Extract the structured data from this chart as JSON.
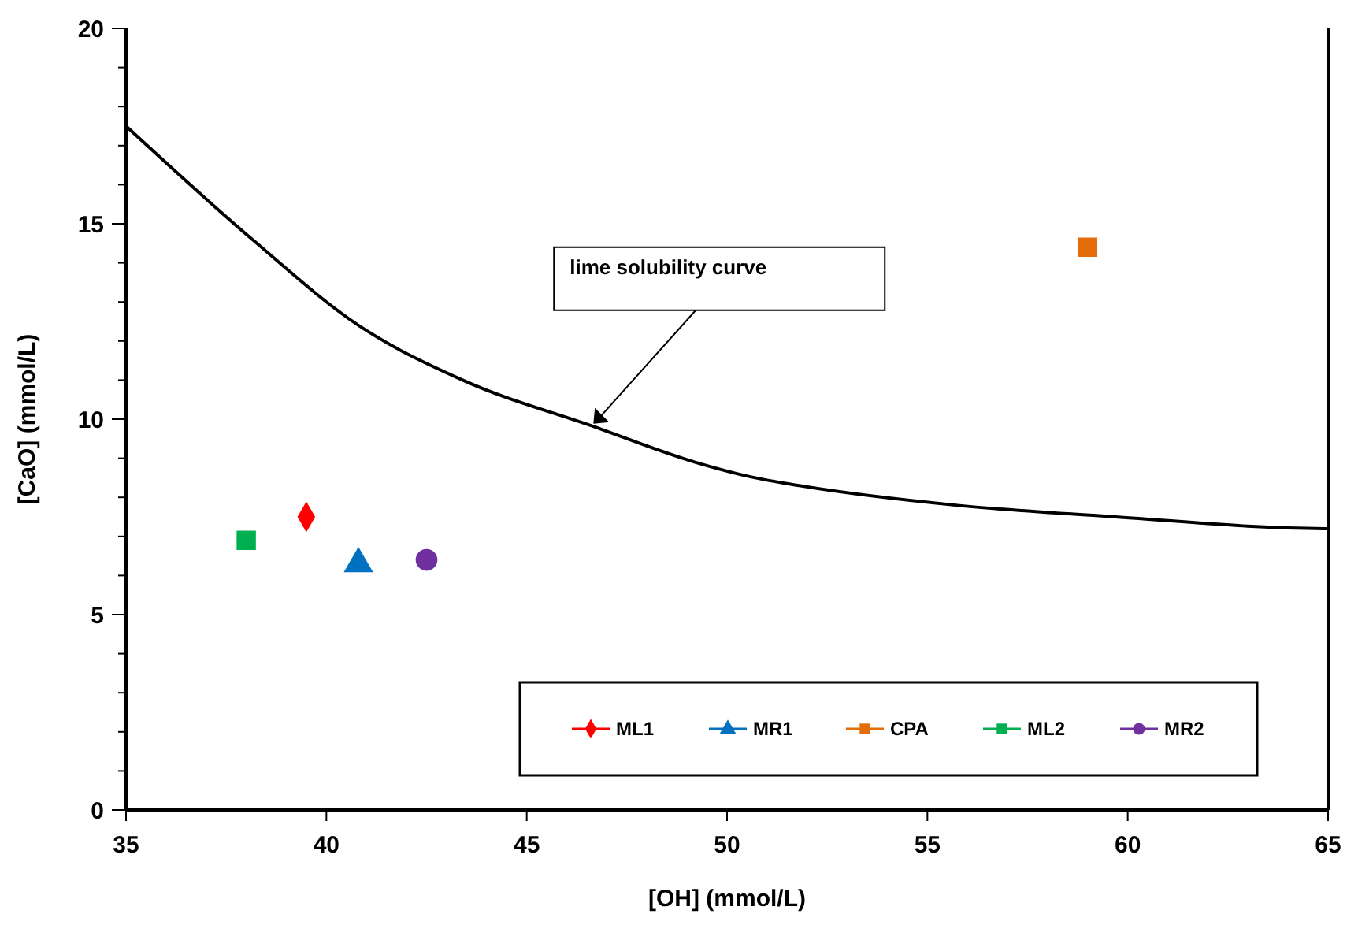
{
  "chart_data": {
    "type": "scatter",
    "xlabel": "[OH] (mmol/L)",
    "ylabel": "[CaO] (mmol/L)",
    "xlim": [
      35,
      65
    ],
    "xticks": [
      35,
      40,
      45,
      50,
      55,
      60,
      65
    ],
    "ylim": [
      0,
      20
    ],
    "yticks": [
      0,
      {
        "value": 1,
        "label": null
      },
      {
        "value": 2,
        "label": null
      },
      {
        "value": 3,
        "label": null
      },
      {
        "value": 4,
        "label": null
      },
      5,
      {
        "value": 6,
        "label": null
      },
      {
        "value": 7,
        "label": null
      },
      {
        "value": 8,
        "label": null
      },
      {
        "value": 9,
        "label": null
      },
      10,
      {
        "value": 11,
        "label": null
      },
      {
        "value": 12,
        "label": null
      },
      {
        "value": 13,
        "label": null
      },
      {
        "value": 14,
        "label": null
      },
      15,
      {
        "value": 16,
        "label": null
      },
      {
        "value": 17,
        "label": null
      },
      {
        "value": 18,
        "label": null
      },
      {
        "value": 19,
        "label": null
      },
      20
    ],
    "grid": false,
    "legend": "bottom right",
    "series": [
      {
        "type": "line",
        "color": "#000000",
        "marker": "none",
        "x": [
          35,
          38.15,
          40.8,
          43.4,
          46.7,
          49.2,
          50.7,
          51.8,
          55.7,
          59.7,
          64.9,
          65
        ],
        "values": [
          17.5,
          14.6,
          12.4,
          11.0,
          9.8,
          8.9,
          8.5,
          8.3,
          7.8,
          7.5,
          7.2,
          7.2
        ]
      },
      {
        "name": "ML1",
        "color": "#ff0000",
        "marker": "diamond",
        "x": [
          39.5
        ],
        "values": [
          7.5
        ]
      },
      {
        "name": "MR1",
        "color": "#0070c0",
        "marker": "triangle",
        "x": [
          40.8
        ],
        "values": [
          6.3
        ]
      },
      {
        "name": "CPA",
        "color": "#e46c0a",
        "marker": "square",
        "x": [
          59
        ],
        "values": [
          14.4
        ]
      },
      {
        "name": "ML2",
        "color": "#00b050",
        "marker": "square",
        "x": [
          38
        ],
        "values": [
          6.9
        ]
      },
      {
        "name": "MR2",
        "color": "#7030a0",
        "marker": "circle",
        "x": [
          42.5
        ],
        "values": [
          6.4
        ]
      }
    ],
    "annotations": [
      "lime solubility curve"
    ]
  }
}
